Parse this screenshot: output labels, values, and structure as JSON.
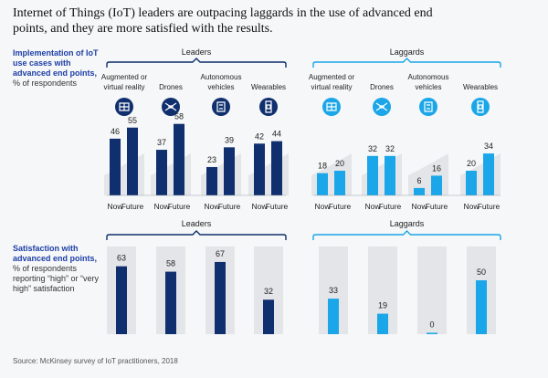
{
  "title": "Internet of Things (IoT) leaders are outpacing laggards in the use of advanced end points, and they are more satisfied with the results.",
  "source": "Source: McKinsey survey of IoT practitioners, 2018",
  "colors": {
    "leaders": "#0f2f6e",
    "laggards": "#1aa6e8",
    "panel": "#e3e5e8"
  },
  "chart_data": [
    {
      "type": "bar",
      "title": "Implementation of IoT use cases with advanced end points,",
      "ylabel": "% of respondents",
      "groups": [
        "Leaders",
        "Laggards"
      ],
      "categories": [
        "Augmented or virtual reality",
        "Drones",
        "Autonomous vehicles",
        "Wearables"
      ],
      "category_icons": [
        "ar-vr-icon",
        "drone-icon",
        "autonomous-vehicle-icon",
        "wearable-icon"
      ],
      "series": [
        {
          "name": "Now",
          "leaders": [
            46,
            37,
            23,
            42
          ],
          "laggards": [
            18,
            32,
            6,
            20
          ]
        },
        {
          "name": "Future",
          "leaders": [
            55,
            58,
            39,
            44
          ],
          "laggards": [
            20,
            32,
            16,
            34
          ]
        }
      ],
      "ylim": [
        0,
        60
      ]
    },
    {
      "type": "bar",
      "title": "Satisfaction with advanced end points,",
      "ylabel": "% of respondents reporting “high” or “very high” satisfaction",
      "groups": [
        "Leaders",
        "Laggards"
      ],
      "categories": [
        "Augmented or virtual reality",
        "Drones",
        "Autonomous vehicles",
        "Wearables"
      ],
      "leaders": [
        63,
        58,
        67,
        32
      ],
      "laggards": [
        33,
        19,
        0,
        50
      ],
      "ylim": [
        0,
        100
      ]
    }
  ]
}
